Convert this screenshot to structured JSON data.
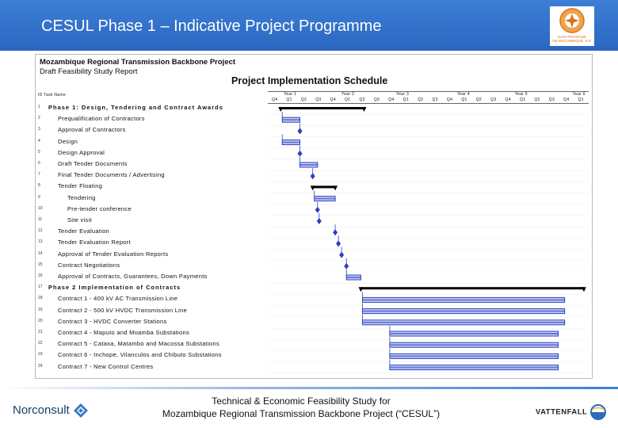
{
  "header": {
    "title": "CESUL Phase 1 – Indicative Project Programme"
  },
  "edm_logo": {
    "text_line1": "ELECTRICIDADE",
    "text_line2": "DE MOÇAMBIQUE, E.P."
  },
  "document": {
    "line1": "Mozambique Regional Transmission Backbone Project",
    "line2": "Draft Feasibility Study Report",
    "schedule_title": "Project Implementation Schedule",
    "column_header": "ID Task Name",
    "years": [
      "Year 1",
      "Year 2",
      "Year 3",
      "Year 4",
      "Year 5",
      "Year 6"
    ],
    "quarters": [
      "Q4",
      "Q1",
      "Q2",
      "Q3",
      "Q4",
      "Q1",
      "Q2",
      "Q3",
      "Q4",
      "Q1",
      "Q2",
      "Q3",
      "Q4",
      "Q1",
      "Q2",
      "Q3",
      "Q4",
      "Q1",
      "Q2",
      "Q3",
      "Q4",
      "Q1"
    ]
  },
  "tasks": [
    {
      "id": "1",
      "name": "Phase 1: Design, Tendering and Contract Awards",
      "level": 0
    },
    {
      "id": "2",
      "name": "Prequalification of Contractors",
      "level": 1
    },
    {
      "id": "3",
      "name": "Approval of Contractors",
      "level": 1
    },
    {
      "id": "4",
      "name": "Design",
      "level": 1
    },
    {
      "id": "5",
      "name": "Design Approval",
      "level": 1
    },
    {
      "id": "6",
      "name": "Draft Tender Documents",
      "level": 1
    },
    {
      "id": "7",
      "name": "Final Tender Documents / Advertising",
      "level": 1
    },
    {
      "id": "8",
      "name": "Tender Floating",
      "level": 1
    },
    {
      "id": "9",
      "name": "Tendering",
      "level": 2
    },
    {
      "id": "10",
      "name": "Pre-tender conference",
      "level": 2
    },
    {
      "id": "11",
      "name": "Site visit",
      "level": 2
    },
    {
      "id": "12",
      "name": "Tender Evaluation",
      "level": 1
    },
    {
      "id": "13",
      "name": "Tender Evaluation Report",
      "level": 1
    },
    {
      "id": "14",
      "name": "Approval of Tender Evaluation Reports",
      "level": 1
    },
    {
      "id": "15",
      "name": "Contract Negotiations",
      "level": 1
    },
    {
      "id": "16",
      "name": "Approval of Contracts, Guarantees, Down Payments",
      "level": 1
    },
    {
      "id": "17",
      "name": "Phase 2 Implementation of Contracts",
      "level": 0
    },
    {
      "id": "18",
      "name": "Contract 1 - 400 kV AC Transmission Line",
      "level": 1
    },
    {
      "id": "19",
      "name": "Contract 2 - 500 kV HVDC Transmission Line",
      "level": 1
    },
    {
      "id": "20",
      "name": "Contract 3 - HVDC Converter Stations",
      "level": 1
    },
    {
      "id": "21",
      "name": "Contract 4 - Maputo and Moamba Substations",
      "level": 1
    },
    {
      "id": "22",
      "name": "Contract 5 - Cataxa, Matambo and Macossa Substations",
      "level": 1
    },
    {
      "id": "23",
      "name": "Contract 6 - Inchope, Vilanculos and Chibuto Substations",
      "level": 1
    },
    {
      "id": "24",
      "name": "Contract 7 - New Control Centres",
      "level": 1
    }
  ],
  "bars": [
    {
      "type": "summary",
      "start": 0.04,
      "end": 0.3
    },
    {
      "type": "task",
      "start": 0.045,
      "end": 0.1
    },
    {
      "type": "milestone",
      "start": 0.1,
      "end": 0.1
    },
    {
      "type": "task",
      "start": 0.045,
      "end": 0.1
    },
    {
      "type": "milestone",
      "start": 0.1,
      "end": 0.1
    },
    {
      "type": "task",
      "start": 0.1,
      "end": 0.155
    },
    {
      "type": "milestone",
      "start": 0.14,
      "end": 0.14
    },
    {
      "type": "summary",
      "start": 0.14,
      "end": 0.21
    },
    {
      "type": "task",
      "start": 0.145,
      "end": 0.21
    },
    {
      "type": "milestone",
      "start": 0.155,
      "end": 0.155
    },
    {
      "type": "milestone",
      "start": 0.16,
      "end": 0.16
    },
    {
      "type": "milestone",
      "start": 0.21,
      "end": 0.21
    },
    {
      "type": "milestone",
      "start": 0.22,
      "end": 0.22
    },
    {
      "type": "milestone",
      "start": 0.23,
      "end": 0.23
    },
    {
      "type": "milestone",
      "start": 0.245,
      "end": 0.245
    },
    {
      "type": "task",
      "start": 0.245,
      "end": 0.29
    },
    {
      "type": "summary",
      "start": 0.29,
      "end": 0.985
    },
    {
      "type": "task",
      "start": 0.295,
      "end": 0.925
    },
    {
      "type": "task",
      "start": 0.295,
      "end": 0.925
    },
    {
      "type": "task",
      "start": 0.295,
      "end": 0.925
    },
    {
      "type": "task",
      "start": 0.38,
      "end": 0.905
    },
    {
      "type": "task",
      "start": 0.38,
      "end": 0.905
    },
    {
      "type": "task",
      "start": 0.38,
      "end": 0.905
    },
    {
      "type": "task",
      "start": 0.38,
      "end": 0.905
    }
  ],
  "footer": {
    "line1": "Technical & Economic Feasibility Study for",
    "line2": "Mozambique Regional Transmission Backbone Project (“CESUL”)",
    "norconsult": "Norconsult",
    "vattenfall": "VATTENFALL"
  },
  "colors": {
    "header_blue": "#2f6fcb",
    "bar_blue": "#2b3fbf",
    "summary_black": "#000000"
  }
}
